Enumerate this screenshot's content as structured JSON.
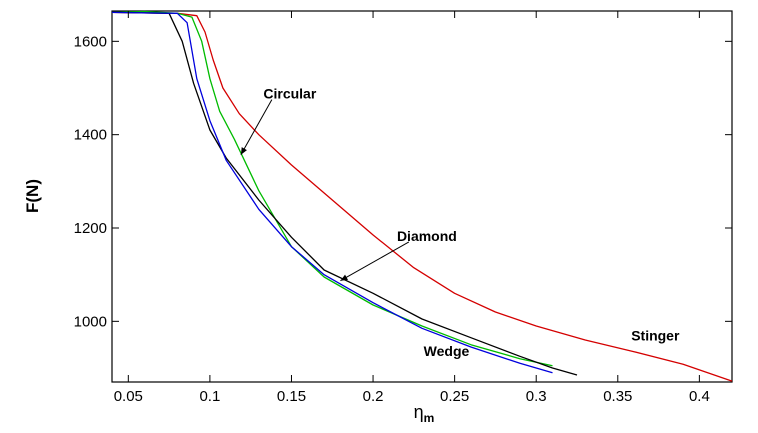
{
  "chart_data": {
    "type": "line",
    "title": "",
    "xlabel": "η",
    "xlabel_sub": "m",
    "ylabel": "F(N)",
    "xlim": [
      0.04,
      0.42
    ],
    "ylim": [
      870,
      1665
    ],
    "xticks": [
      0.05,
      0.1,
      0.15,
      0.2,
      0.25,
      0.3,
      0.35,
      0.4
    ],
    "xtick_labels": [
      "0.05",
      "0.1",
      "0.15",
      "0.2",
      "0.25",
      "0.3",
      "0.35",
      "0.4"
    ],
    "yticks": [
      1000,
      1200,
      1400,
      1600
    ],
    "ytick_labels": [
      "1000",
      "1200",
      "1400",
      "1600"
    ],
    "grid": false,
    "legend": "none",
    "series": [
      {
        "name": "Stinger",
        "color": "#d40000",
        "points": [
          [
            0.04,
            1662
          ],
          [
            0.08,
            1660
          ],
          [
            0.092,
            1655
          ],
          [
            0.097,
            1620
          ],
          [
            0.102,
            1560
          ],
          [
            0.108,
            1500
          ],
          [
            0.118,
            1445
          ],
          [
            0.13,
            1400
          ],
          [
            0.15,
            1335
          ],
          [
            0.175,
            1260
          ],
          [
            0.2,
            1185
          ],
          [
            0.225,
            1115
          ],
          [
            0.25,
            1060
          ],
          [
            0.275,
            1020
          ],
          [
            0.3,
            990
          ],
          [
            0.33,
            960
          ],
          [
            0.36,
            935
          ],
          [
            0.39,
            908
          ],
          [
            0.42,
            872
          ]
        ]
      },
      {
        "name": "Circular",
        "color": "#00bb00",
        "points": [
          [
            0.04,
            1662
          ],
          [
            0.06,
            1664
          ],
          [
            0.08,
            1660
          ],
          [
            0.089,
            1652
          ],
          [
            0.095,
            1600
          ],
          [
            0.1,
            1520
          ],
          [
            0.106,
            1450
          ],
          [
            0.115,
            1390
          ],
          [
            0.13,
            1280
          ],
          [
            0.15,
            1160
          ],
          [
            0.17,
            1095
          ],
          [
            0.2,
            1035
          ],
          [
            0.23,
            990
          ],
          [
            0.26,
            950
          ],
          [
            0.29,
            920
          ],
          [
            0.31,
            905
          ]
        ]
      },
      {
        "name": "Diamond",
        "color": "#000000",
        "points": [
          [
            0.04,
            1662
          ],
          [
            0.075,
            1660
          ],
          [
            0.083,
            1600
          ],
          [
            0.09,
            1510
          ],
          [
            0.1,
            1410
          ],
          [
            0.11,
            1350
          ],
          [
            0.13,
            1260
          ],
          [
            0.15,
            1180
          ],
          [
            0.17,
            1110
          ],
          [
            0.2,
            1060
          ],
          [
            0.23,
            1005
          ],
          [
            0.26,
            965
          ],
          [
            0.29,
            925
          ],
          [
            0.31,
            900
          ],
          [
            0.325,
            885
          ]
        ]
      },
      {
        "name": "Wedge",
        "color": "#0000dd",
        "points": [
          [
            0.04,
            1662
          ],
          [
            0.08,
            1660
          ],
          [
            0.086,
            1640
          ],
          [
            0.092,
            1520
          ],
          [
            0.1,
            1430
          ],
          [
            0.11,
            1345
          ],
          [
            0.13,
            1240
          ],
          [
            0.15,
            1160
          ],
          [
            0.17,
            1100
          ],
          [
            0.2,
            1040
          ],
          [
            0.23,
            985
          ],
          [
            0.26,
            945
          ],
          [
            0.29,
            910
          ],
          [
            0.31,
            890
          ]
        ]
      }
    ],
    "annotations": [
      {
        "text": "Circular",
        "anchor": [
          0.149,
          1488
        ],
        "arrow_to": [
          0.119,
          1357
        ]
      },
      {
        "text": "Diamond",
        "anchor": [
          0.233,
          1183
        ],
        "arrow_to": [
          0.18,
          1087
        ]
      },
      {
        "text": "Stinger",
        "anchor": [
          0.373,
          970
        ],
        "arrow_to": null
      },
      {
        "text": "Wedge",
        "anchor": [
          0.245,
          936
        ],
        "arrow_to": null
      }
    ]
  }
}
